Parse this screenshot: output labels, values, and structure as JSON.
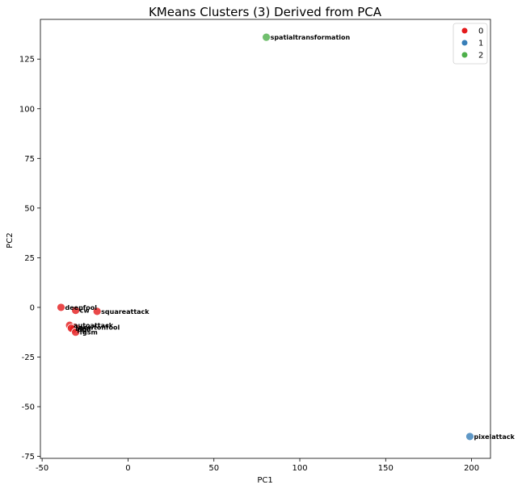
{
  "chart_data": {
    "type": "scatter",
    "title": "KMeans Clusters (3) Derived from PCA",
    "xlabel": "PC1",
    "ylabel": "PC2",
    "xlim": [
      -51,
      211
    ],
    "ylim": [
      -76,
      145
    ],
    "xticks": [
      -50,
      0,
      50,
      100,
      150,
      200
    ],
    "yticks": [
      -75,
      -50,
      -25,
      0,
      25,
      50,
      75,
      100,
      125
    ],
    "grid": false,
    "legend_placement": "top-right",
    "legend": [
      {
        "name": "0",
        "color": "#e41a1c"
      },
      {
        "name": "1",
        "color": "#377eb8"
      },
      {
        "name": "2",
        "color": "#4daf4a"
      }
    ],
    "points": [
      {
        "label": "deepfool",
        "x": -39,
        "y": 0,
        "cluster": "0"
      },
      {
        "label": "cw",
        "x": -30.5,
        "y": -1.5,
        "cluster": "0"
      },
      {
        "label": "squareattack",
        "x": -18,
        "y": -2,
        "cluster": "0"
      },
      {
        "label": "autoattack",
        "x": -34,
        "y": -9,
        "cluster": "0"
      },
      {
        "label": "newtonfool",
        "x": -31,
        "y": -10,
        "cluster": "0"
      },
      {
        "label": "pgd",
        "x": -32,
        "y": -11,
        "cluster": "0"
      },
      {
        "label": "bim",
        "x": -33,
        "y": -10.5,
        "cluster": "0"
      },
      {
        "label": "fgsm",
        "x": -30.5,
        "y": -12.5,
        "cluster": "0"
      },
      {
        "label": "spatialtransformation",
        "x": 80.5,
        "y": 136,
        "cluster": "2"
      },
      {
        "label": "pixelattack",
        "x": 199,
        "y": -65,
        "cluster": "1"
      }
    ]
  }
}
